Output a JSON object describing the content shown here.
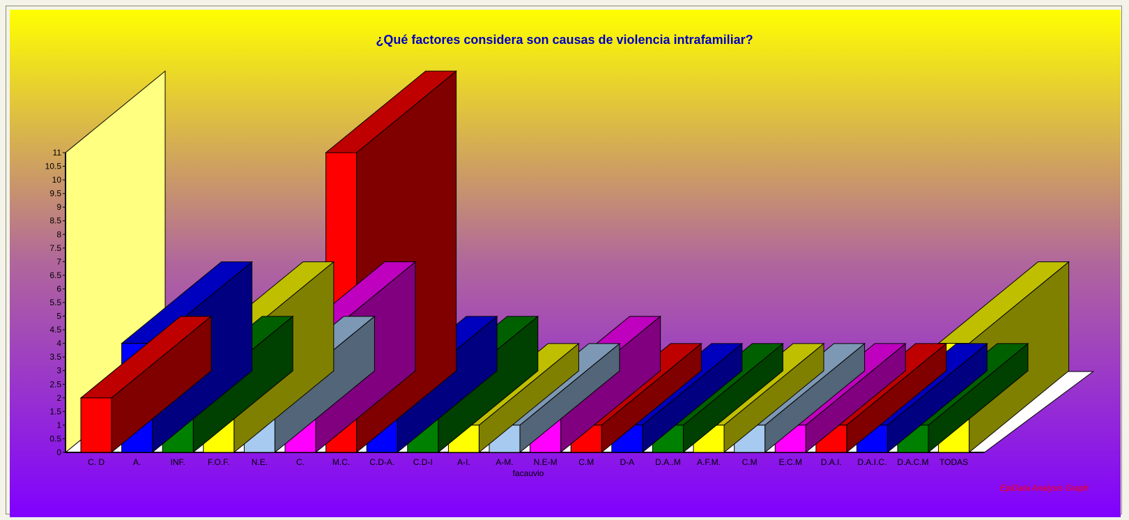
{
  "chart_data": {
    "type": "bar",
    "title": "¿Qué factores considera son causas de violencia intrafamiliar?",
    "xlabel": "facauvio",
    "ylabel": "",
    "categories": [
      "C. D",
      "A.",
      "INF.",
      "F.O.F.",
      "N.E.",
      "C.",
      "M.C.",
      "C.D-A.",
      "C.D-I",
      "A-I.",
      "A-M.",
      "N.E-M",
      "C.M",
      "D-A",
      "D.A..M",
      "A.F.M.",
      "C.M",
      "E.C.M",
      "D.A.I.",
      "D.A.I.C.",
      "D.A.C.M",
      "TODAS"
    ],
    "values": [
      2,
      4,
      2,
      4,
      2,
      4,
      11,
      2,
      2,
      1,
      1,
      2,
      1,
      1,
      1,
      1,
      1,
      1,
      1,
      1,
      1,
      4
    ],
    "ylim": [
      0,
      11
    ],
    "yticks": [
      0,
      0.5,
      1,
      1.5,
      2,
      2.5,
      3,
      3.5,
      4,
      4.5,
      5,
      5.5,
      6,
      6.5,
      7,
      7.5,
      8,
      8.5,
      9,
      9.5,
      10,
      10.5,
      11
    ],
    "bar_colors": [
      "#ff0000",
      "#0000ff",
      "#008000",
      "#ffff00",
      "#a6caf0",
      "#ff00ff"
    ],
    "grid": false,
    "legend": "none",
    "watermark": "EpiData Analysis Graph"
  }
}
